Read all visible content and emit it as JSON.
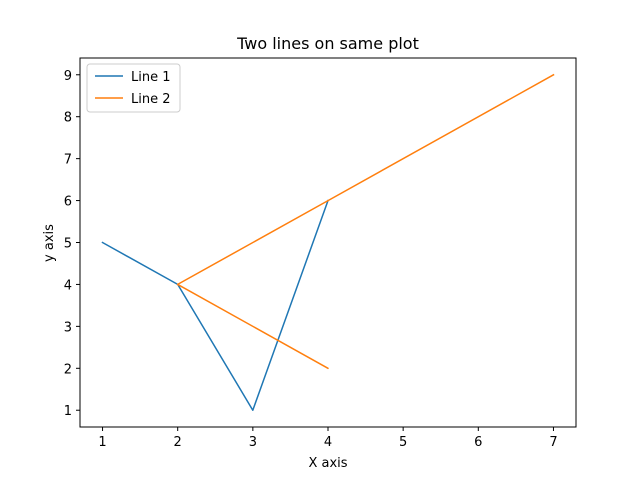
{
  "chart_data": {
    "type": "line",
    "title": "Two lines on same plot",
    "xlabel": "X axis",
    "ylabel": "y axis",
    "xlim": [
      0.7,
      7.3
    ],
    "ylim": [
      0.6,
      9.4
    ],
    "xticks": [
      1,
      2,
      3,
      4,
      5,
      6,
      7
    ],
    "yticks": [
      1,
      2,
      3,
      4,
      5,
      6,
      7,
      8,
      9
    ],
    "grid": false,
    "legend_position": "top-left",
    "series": [
      {
        "name": "Line 1",
        "color": "#1f77b4",
        "x": [
          1,
          2,
          3,
          4
        ],
        "y": [
          5,
          4,
          1,
          6
        ]
      },
      {
        "name": "Line 2",
        "color": "#ff7f0e",
        "points": [
          {
            "x": 2,
            "y": 4
          },
          {
            "x": 4,
            "y": 2
          },
          {
            "x": 2,
            "y": 4
          },
          {
            "x": 4,
            "y": 6
          },
          {
            "x": 7,
            "y": 9
          }
        ]
      }
    ]
  }
}
